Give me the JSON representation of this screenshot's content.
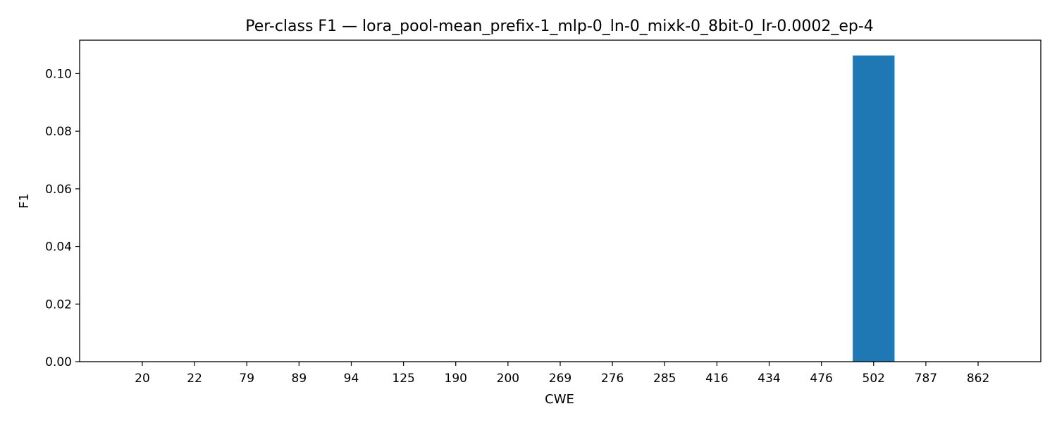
{
  "chart_data": {
    "type": "bar",
    "title": "Per-class F1 — lora_pool-mean_prefix-1_mlp-0_ln-0_mixk-0_8bit-0_lr-0.0002_ep-4",
    "xlabel": "CWE",
    "ylabel": "F1",
    "categories": [
      "20",
      "22",
      "79",
      "89",
      "94",
      "125",
      "190",
      "200",
      "269",
      "276",
      "285",
      "416",
      "434",
      "476",
      "502",
      "787",
      "862"
    ],
    "values": [
      0,
      0,
      0,
      0,
      0,
      0,
      0,
      0,
      0,
      0,
      0,
      0,
      0,
      0,
      0.1063,
      0,
      0
    ],
    "ylim": [
      0,
      0.1116
    ],
    "yticks": [
      0.0,
      0.02,
      0.04,
      0.06,
      0.08,
      0.1
    ],
    "ytick_labels": [
      "0.00",
      "0.02",
      "0.04",
      "0.06",
      "0.08",
      "0.10"
    ],
    "bar_color": "#1f77b4",
    "grid": false,
    "legend": null
  }
}
